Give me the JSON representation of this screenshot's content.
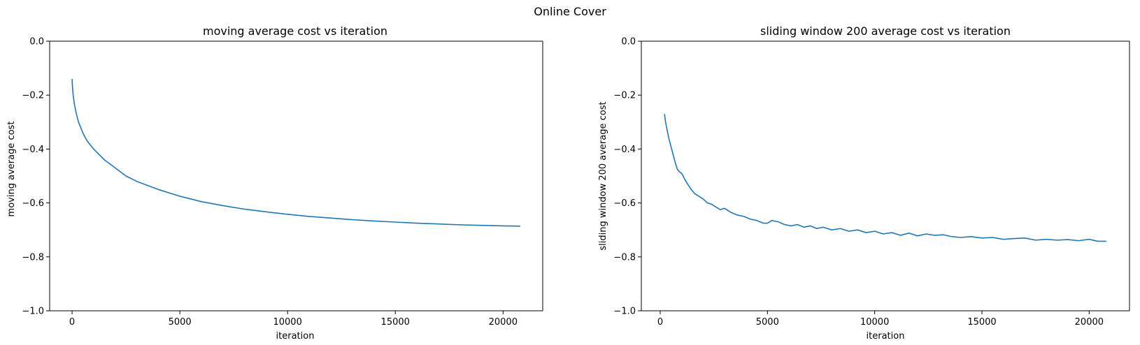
{
  "figure": {
    "suptitle": "Online Cover",
    "line_color": "#1f77b4"
  },
  "chart_data": [
    {
      "type": "line",
      "title": "moving average cost vs iteration",
      "xlabel": "iteration",
      "ylabel": "moving average cost",
      "xlim": [
        -1040,
        21840
      ],
      "ylim": [
        -1.0,
        0.0
      ],
      "xticks": [
        0,
        5000,
        10000,
        15000,
        20000
      ],
      "yticks": [
        -1.0,
        -0.8,
        -0.6,
        -0.4,
        -0.2,
        0.0
      ],
      "xtick_labels": [
        "0",
        "5000",
        "10000",
        "15000",
        "20000"
      ],
      "ytick_labels": [
        "−1.0",
        "−0.8",
        "−0.6",
        "−0.4",
        "−0.2",
        "0.0"
      ],
      "grid": false,
      "series": [
        {
          "x": [
            1,
            20,
            50,
            100,
            200,
            300,
            500,
            700,
            1000,
            1500,
            2000,
            2500,
            3000,
            4000,
            5000,
            6000,
            7000,
            8000,
            9000,
            10000,
            11000,
            12000,
            13000,
            14000,
            15000,
            16000,
            17000,
            18000,
            19000,
            20000,
            20800
          ],
          "y": [
            -0.14,
            -0.17,
            -0.2,
            -0.23,
            -0.27,
            -0.3,
            -0.34,
            -0.37,
            -0.4,
            -0.44,
            -0.47,
            -0.5,
            -0.52,
            -0.55,
            -0.575,
            -0.595,
            -0.61,
            -0.623,
            -0.633,
            -0.642,
            -0.65,
            -0.656,
            -0.662,
            -0.667,
            -0.671,
            -0.675,
            -0.678,
            -0.681,
            -0.683,
            -0.685,
            -0.686
          ]
        }
      ]
    },
    {
      "type": "line",
      "title": "sliding window 200 average cost vs iteration",
      "xlabel": "iteration",
      "ylabel": "sliding window 200 average cost",
      "xlim": [
        -880,
        21880
      ],
      "ylim": [
        -1.0,
        0.0
      ],
      "xticks": [
        0,
        5000,
        10000,
        15000,
        20000
      ],
      "yticks": [
        -1.0,
        -0.8,
        -0.6,
        -0.4,
        -0.2,
        0.0
      ],
      "xtick_labels": [
        "0",
        "5000",
        "10000",
        "15000",
        "20000"
      ],
      "ytick_labels": [
        "−1.0",
        "−0.8",
        "−0.6",
        "−0.4",
        "−0.2",
        "0.0"
      ],
      "grid": false,
      "series": [
        {
          "x": [
            200,
            250,
            300,
            400,
            500,
            600,
            700,
            800,
            900,
            1000,
            1200,
            1400,
            1600,
            1800,
            2000,
            2200,
            2400,
            2600,
            2800,
            3000,
            3300,
            3600,
            3900,
            4200,
            4500,
            4800,
            5000,
            5200,
            5500,
            5800,
            6100,
            6400,
            6700,
            7000,
            7300,
            7600,
            8000,
            8400,
            8800,
            9200,
            9600,
            10000,
            10400,
            10800,
            11200,
            11600,
            12000,
            12400,
            12800,
            13200,
            13600,
            14000,
            14500,
            15000,
            15500,
            16000,
            16500,
            17000,
            17500,
            18000,
            18500,
            19000,
            19500,
            20000,
            20400,
            20800
          ],
          "y": [
            -0.27,
            -0.3,
            -0.32,
            -0.36,
            -0.39,
            -0.42,
            -0.45,
            -0.475,
            -0.485,
            -0.49,
            -0.52,
            -0.545,
            -0.565,
            -0.575,
            -0.585,
            -0.6,
            -0.605,
            -0.615,
            -0.625,
            -0.62,
            -0.635,
            -0.645,
            -0.65,
            -0.66,
            -0.665,
            -0.675,
            -0.675,
            -0.665,
            -0.67,
            -0.68,
            -0.685,
            -0.68,
            -0.69,
            -0.685,
            -0.695,
            -0.69,
            -0.7,
            -0.695,
            -0.705,
            -0.7,
            -0.71,
            -0.705,
            -0.715,
            -0.71,
            -0.72,
            -0.712,
            -0.722,
            -0.715,
            -0.72,
            -0.718,
            -0.725,
            -0.728,
            -0.725,
            -0.73,
            -0.728,
            -0.735,
            -0.732,
            -0.73,
            -0.738,
            -0.735,
            -0.738,
            -0.736,
            -0.74,
            -0.735,
            -0.742,
            -0.742
          ]
        }
      ]
    }
  ]
}
